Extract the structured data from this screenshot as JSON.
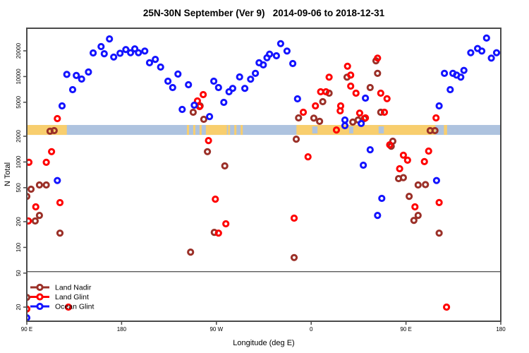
{
  "title_bar": {
    "title": "25N-30N September (Ver 9)   2014-09-06 to 2018-12-31"
  },
  "chart_data": {
    "type": "scatter",
    "title": "25N-30N September (Ver 9)   2014-09-06 to 2018-12-31",
    "xlabel": "Longitude (deg E)",
    "ylabel": "N Total",
    "x_axis": {
      "range_deg": [
        90,
        540
      ],
      "ticks_deg": [
        90,
        180,
        270,
        360,
        450,
        540
      ],
      "tick_labels": [
        "90 E",
        "180",
        "90 W",
        "0",
        "90 E",
        "180"
      ]
    },
    "y_axis": {
      "scale": "log10",
      "range": [
        14,
        33000
      ],
      "ticks": [
        20000,
        10000,
        5000,
        2000,
        1000,
        500,
        200,
        100,
        50,
        20
      ],
      "tick_labels": [
        "20000",
        "10000",
        "5000",
        "2000",
        "1000",
        "500",
        "200",
        "100",
        "50",
        "20"
      ]
    },
    "grid": "off",
    "legend": {
      "position": "bottom-left",
      "divider_line_N": 52
    },
    "map_band": {
      "comment": "land/ocean strip along 25N-30N",
      "N_range": [
        2075,
        2710
      ],
      "ocean_color": "#AEC3DF",
      "land_color": "#F8CE6E",
      "land_segments_deg": [
        [
          90,
          128
        ],
        [
          242,
          244
        ],
        [
          248,
          250
        ],
        [
          254,
          256
        ],
        [
          260,
          280
        ],
        [
          281,
          283
        ],
        [
          287,
          289
        ],
        [
          293,
          295
        ],
        [
          346,
          478
        ],
        [
          486,
          489
        ]
      ],
      "ocean_inlets_deg": [
        [
          361,
          366
        ],
        [
          396,
          400
        ],
        [
          424,
          429
        ]
      ]
    },
    "series": [
      {
        "name": "Land Nadir",
        "color": "#9B3028",
        "points": [
          [
            112,
            2290
          ],
          [
            116,
            2330
          ],
          [
            102,
            538
          ],
          [
            108.5,
            538
          ],
          [
            94,
            480
          ],
          [
            90,
            396
          ],
          [
            102,
            237
          ],
          [
            98,
            204
          ],
          [
            121.5,
            147
          ],
          [
            254.5,
            4530
          ],
          [
            248,
            3820
          ],
          [
            258,
            3160
          ],
          [
            261.5,
            1320
          ],
          [
            278,
            900
          ],
          [
            268,
            150
          ],
          [
            245.5,
            88
          ],
          [
            343.8,
            76
          ],
          [
            345.8,
            1850
          ],
          [
            348,
            3280
          ],
          [
            362.5,
            3260
          ],
          [
            368,
            2990
          ],
          [
            371,
            5080
          ],
          [
            377,
            6390
          ],
          [
            394,
            9830
          ],
          [
            399.5,
            2930
          ],
          [
            404.5,
            3100
          ],
          [
            410.5,
            3220
          ],
          [
            416,
            7430
          ],
          [
            421.5,
            15300
          ],
          [
            423,
            10900
          ],
          [
            426,
            3820
          ],
          [
            436,
            1530
          ],
          [
            437.5,
            1750
          ],
          [
            443,
            638
          ],
          [
            447.5,
            656
          ],
          [
            453,
            396
          ],
          [
            457.5,
            207
          ],
          [
            461.5,
            538
          ],
          [
            461.5,
            237
          ],
          [
            468.5,
            543
          ],
          [
            473,
            2330
          ],
          [
            477.5,
            2330
          ],
          [
            481.5,
            147
          ],
          [
            90,
            26
          ]
        ]
      },
      {
        "name": "Land Glint",
        "color": "#FF0000",
        "points": [
          [
            92,
            990
          ],
          [
            113.5,
            1320
          ],
          [
            108.5,
            990
          ],
          [
            119,
            3220
          ],
          [
            98.5,
            298
          ],
          [
            121.5,
            334
          ],
          [
            129.5,
            20
          ],
          [
            91.5,
            204
          ],
          [
            90,
            19
          ],
          [
            252,
            5180
          ],
          [
            254,
            4450
          ],
          [
            257.5,
            6150
          ],
          [
            262.5,
            1780
          ],
          [
            269,
            367
          ],
          [
            272,
            147
          ],
          [
            279,
            189
          ],
          [
            343.8,
            220
          ],
          [
            352.5,
            3820
          ],
          [
            357,
            1150
          ],
          [
            364,
            4530
          ],
          [
            369,
            6630
          ],
          [
            374,
            6630
          ],
          [
            377,
            9830
          ],
          [
            384,
            2370
          ],
          [
            387.5,
            3970
          ],
          [
            388,
            4530
          ],
          [
            394.5,
            13200
          ],
          [
            397.5,
            10400
          ],
          [
            397.5,
            7730
          ],
          [
            402.5,
            6390
          ],
          [
            406,
            3730
          ],
          [
            411.5,
            3280
          ],
          [
            423,
            16450
          ],
          [
            426,
            6390
          ],
          [
            429.5,
            3820
          ],
          [
            432,
            5500
          ],
          [
            434.5,
            1590
          ],
          [
            444,
            834
          ],
          [
            447.5,
            1200
          ],
          [
            451.5,
            1050
          ],
          [
            458.5,
            298
          ],
          [
            467.5,
            1010
          ],
          [
            471.5,
            1340
          ],
          [
            478.5,
            3280
          ],
          [
            481.5,
            335
          ],
          [
            488.5,
            20
          ]
        ]
      },
      {
        "name": "Ocean Glint",
        "color": "#1414FF",
        "points": [
          [
            90,
            15
          ],
          [
            119,
            606
          ],
          [
            123.5,
            4530
          ],
          [
            128,
            10600
          ],
          [
            133.5,
            7020
          ],
          [
            137,
            10300
          ],
          [
            142,
            9340
          ],
          [
            148.5,
            11300
          ],
          [
            153,
            18900
          ],
          [
            160.5,
            22400
          ],
          [
            163.5,
            18500
          ],
          [
            168.5,
            27600
          ],
          [
            172.5,
            16900
          ],
          [
            178.5,
            18700
          ],
          [
            184,
            20700
          ],
          [
            188.5,
            19000
          ],
          [
            192.5,
            21100
          ],
          [
            196,
            19000
          ],
          [
            202,
            19900
          ],
          [
            206.5,
            14500
          ],
          [
            212,
            15900
          ],
          [
            217,
            12900
          ],
          [
            224,
            8830
          ],
          [
            228.5,
            7430
          ],
          [
            233.5,
            10700
          ],
          [
            237.5,
            4120
          ],
          [
            243.5,
            8020
          ],
          [
            249,
            4620
          ],
          [
            263.5,
            3400
          ],
          [
            267.5,
            8830
          ],
          [
            272,
            7430
          ],
          [
            277,
            4990
          ],
          [
            282,
            6630
          ],
          [
            285.5,
            7260
          ],
          [
            292,
            9890
          ],
          [
            297,
            7260
          ],
          [
            302.5,
            9300
          ],
          [
            307,
            10900
          ],
          [
            310.5,
            14500
          ],
          [
            314.5,
            13700
          ],
          [
            318,
            16600
          ],
          [
            320.5,
            18300
          ],
          [
            327,
            17500
          ],
          [
            331,
            24300
          ],
          [
            337,
            19900
          ],
          [
            342.5,
            14200
          ],
          [
            347,
            5480
          ],
          [
            392,
            3100
          ],
          [
            392,
            2660
          ],
          [
            407.5,
            2820
          ],
          [
            409.5,
            916
          ],
          [
            411.5,
            5590
          ],
          [
            416,
            1390
          ],
          [
            423,
            237
          ],
          [
            427,
            375
          ],
          [
            479,
            606
          ],
          [
            481.5,
            4530
          ],
          [
            486.5,
            10900
          ],
          [
            492,
            7020
          ],
          [
            494.5,
            10900
          ],
          [
            498,
            10400
          ],
          [
            502,
            9830
          ],
          [
            505,
            11800
          ],
          [
            511.5,
            19000
          ],
          [
            518,
            21300
          ],
          [
            522,
            19900
          ],
          [
            526.5,
            28200
          ],
          [
            531,
            16450
          ],
          [
            536,
            19000
          ]
        ]
      }
    ],
    "style": {
      "axis_color": "#4A4A4A",
      "marker_radius": 3.6,
      "marker_stroke_width": 3
    }
  }
}
